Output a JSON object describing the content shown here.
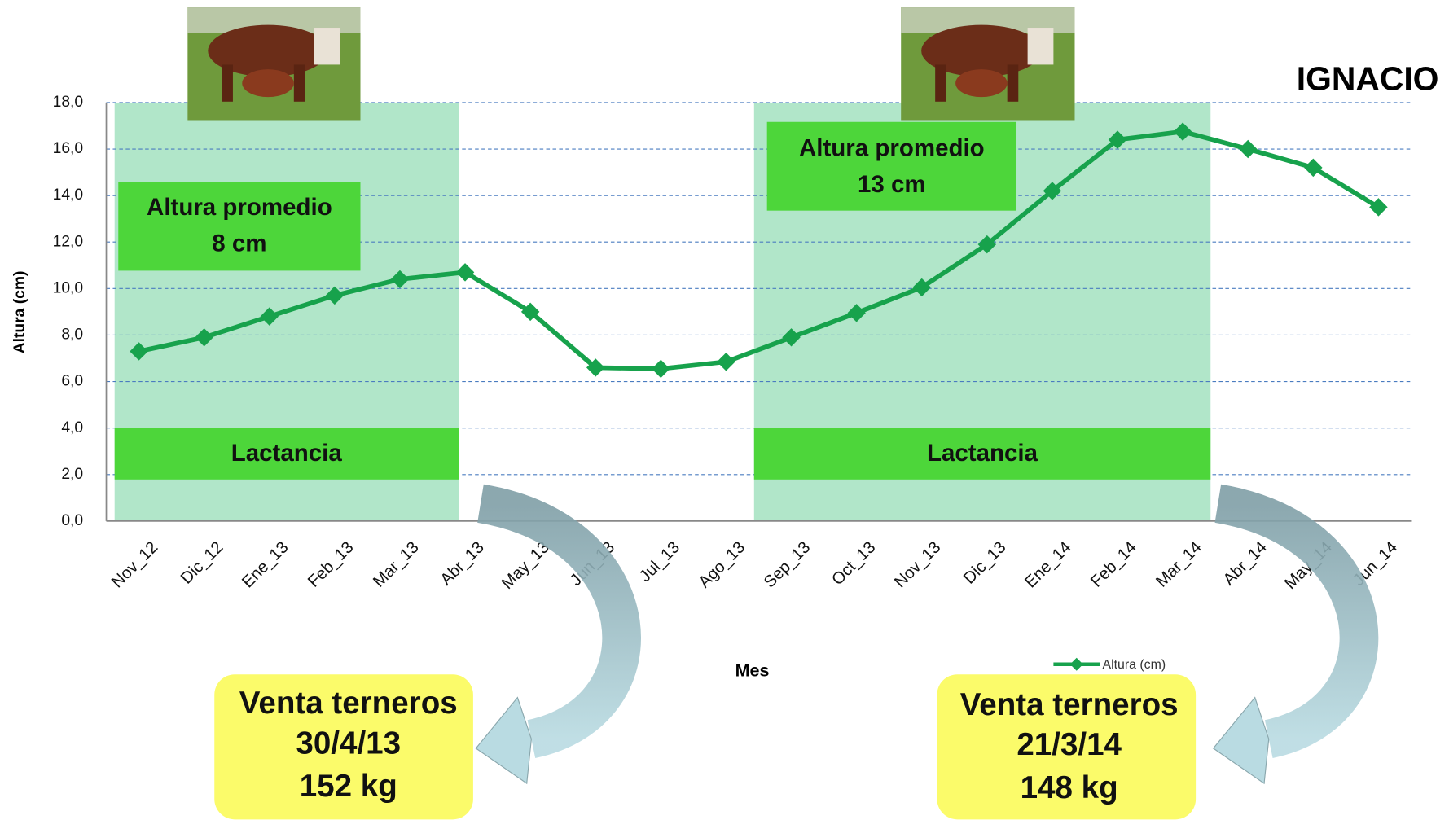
{
  "chart_data": {
    "type": "line",
    "title": "IGNACIO",
    "x_label": "Mes",
    "y_label": "Altura (cm)",
    "categories": [
      "Nov_12",
      "Dic_12",
      "Ene_13",
      "Feb_13",
      "Mar_13",
      "Abr_13",
      "May_13",
      "Jun_13",
      "Jul_13",
      "Ago_13",
      "Sep_13",
      "Oct_13",
      "Nov_13",
      "Dic_13",
      "Ene_14",
      "Feb_14",
      "Mar_14",
      "Abr_14",
      "May_14",
      "Jun_14"
    ],
    "series": [
      {
        "name": "Altura (cm)",
        "color": "#17a24c",
        "values": [
          7.3,
          7.9,
          8.8,
          9.7,
          10.4,
          10.7,
          9.0,
          6.6,
          6.55,
          6.85,
          7.9,
          8.95,
          10.05,
          11.9,
          14.2,
          16.4,
          16.75,
          16.0,
          15.2,
          13.5
        ]
      }
    ],
    "ylim": [
      0,
      18
    ],
    "yticks": [
      {
        "value": 0,
        "label": "0,0"
      },
      {
        "value": 2,
        "label": "2,0"
      },
      {
        "value": 4,
        "label": "4,0"
      },
      {
        "value": 6,
        "label": "6,0"
      },
      {
        "value": 8,
        "label": "8,0"
      },
      {
        "value": 10,
        "label": "10,0"
      },
      {
        "value": 12,
        "label": "12,0"
      },
      {
        "value": 14,
        "label": "14,0"
      },
      {
        "value": 16,
        "label": "16,0"
      },
      {
        "value": 18,
        "label": "18,0"
      }
    ],
    "grid": true,
    "legend": "bottom-right",
    "periods": [
      {
        "label": "Lactancia",
        "average": [
          "Altura promedio",
          "8 cm"
        ],
        "sale": [
          "Venta terneros",
          "30/4/13",
          "152 kg"
        ]
      },
      {
        "label": "Lactancia",
        "average": [
          "Altura promedio",
          "13 cm"
        ],
        "sale": [
          "Venta terneros",
          "21/3/14",
          "148 kg"
        ]
      }
    ]
  }
}
